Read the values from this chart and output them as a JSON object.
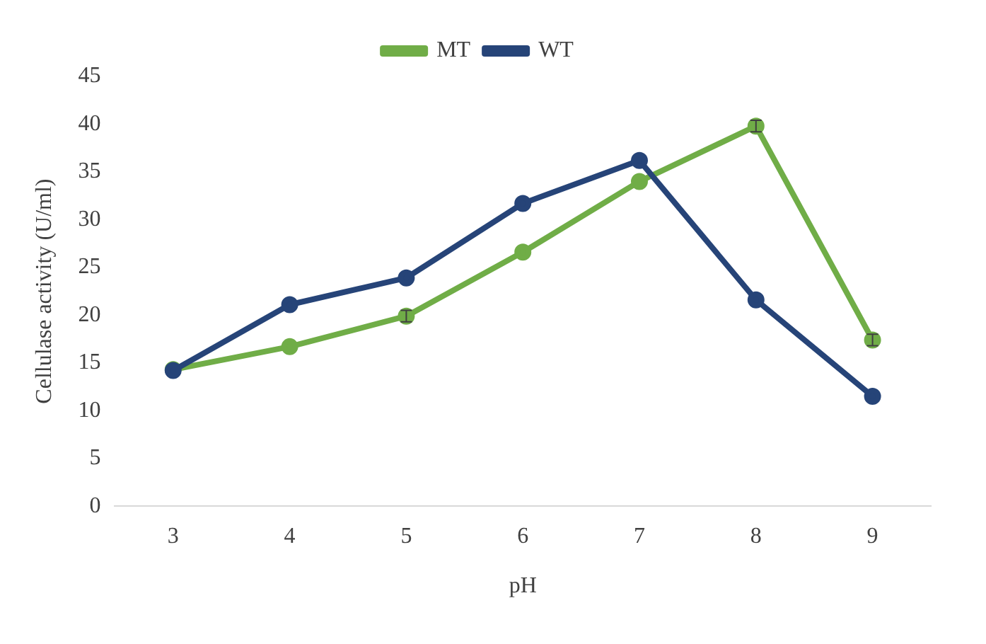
{
  "chart_data": {
    "type": "line",
    "xlabel": "pH",
    "ylabel": "Cellulase activity (U/ml)",
    "categories": [
      "3",
      "4",
      "5",
      "6",
      "7",
      "8",
      "9"
    ],
    "series": [
      {
        "name": "MT",
        "color": "#70ad47",
        "values": [
          14.3,
          16.7,
          19.9,
          26.6,
          34.0,
          39.8,
          17.4
        ],
        "errors": [
          null,
          null,
          0.6,
          null,
          null,
          0.6,
          0.6
        ]
      },
      {
        "name": "WT",
        "color": "#264478",
        "values": [
          14.2,
          21.1,
          23.9,
          31.7,
          36.2,
          21.6,
          11.5
        ]
      }
    ],
    "ylim": [
      0,
      45
    ],
    "yticks": [
      0,
      5,
      10,
      15,
      20,
      25,
      30,
      35,
      40,
      45
    ],
    "grid": false,
    "legend": "top",
    "marker": "circle",
    "line_style": "solid"
  }
}
